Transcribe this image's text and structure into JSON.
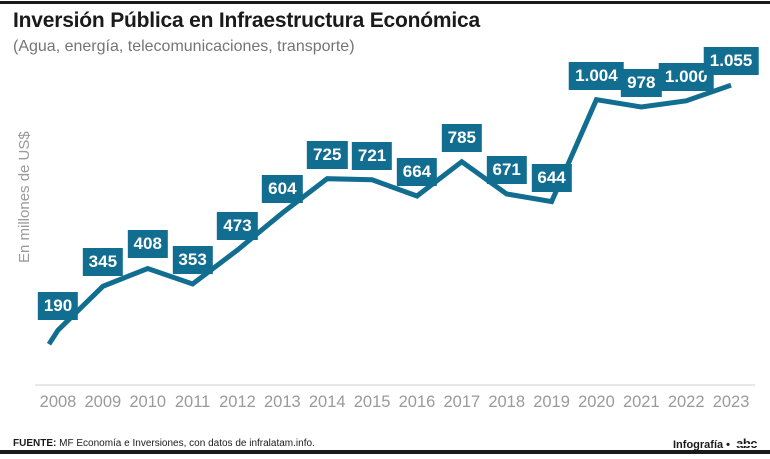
{
  "header": {
    "title": "Inversión Pública en Infraestructura Económica",
    "subtitle": "(Agua, energía, telecomunicaciones, transporte)"
  },
  "chart_data": {
    "type": "line",
    "title": "Inversión Pública en Infraestructura Económica",
    "subtitle": "(Agua, energía, telecomunicaciones, transporte)",
    "ylabel": "En millones de US$",
    "xlabel": "",
    "categories": [
      "2008",
      "2009",
      "2010",
      "2011",
      "2012",
      "2013",
      "2014",
      "2015",
      "2016",
      "2017",
      "2018",
      "2019",
      "2020",
      "2021",
      "2022",
      "2023"
    ],
    "values": [
      190,
      345,
      408,
      353,
      473,
      604,
      725,
      721,
      664,
      785,
      671,
      644,
      1004,
      978,
      1000,
      1055
    ],
    "value_labels": [
      "190",
      "345",
      "408",
      "353",
      "473",
      "604",
      "725",
      "721",
      "664",
      "785",
      "671",
      "644",
      "1.004",
      "978",
      "1.000",
      "1.055"
    ],
    "ylim": [
      0,
      1100
    ],
    "grid": false,
    "legend": "none",
    "line_color": "#126e91",
    "label_bg_color": "#126e91",
    "label_text_color": "#ffffff",
    "axis_text_color": "#9a9a9a"
  },
  "footer": {
    "source_label": "FUENTE:",
    "source_text": " MF Economía e Inversiones, con datos de infralatam.info.",
    "credit": "Infografía •",
    "brand": "abc"
  }
}
